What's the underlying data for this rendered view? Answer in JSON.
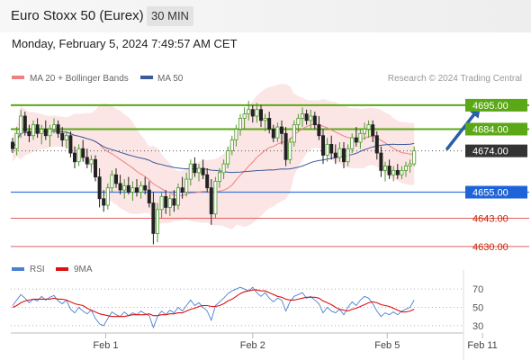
{
  "header": {
    "title": "Euro Stoxx 50 (Eurex)",
    "interval": "30 MIN",
    "datetime": "Monday, February 5, 2024 7:49:57 AM CET"
  },
  "legend": {
    "items": [
      {
        "label": "MA 20 + Bollinger Bands",
        "color": "#f08080"
      },
      {
        "label": "MA 50",
        "color": "#3a5a99"
      }
    ],
    "credit": "Research © 2024 Trading Central"
  },
  "chart_data": [
    {
      "type": "candlestick",
      "ylim": [
        4625,
        4702
      ],
      "x_tick_labels": [
        "Feb 1",
        "Feb 2",
        "Feb 5",
        "Feb 11"
      ],
      "x_tick_positions": [
        22.5,
        58,
        90.5,
        113.5
      ],
      "levels": [
        {
          "value": 4695.0,
          "label": "4695.00",
          "kind": "resistance-strong"
        },
        {
          "value": 4684.0,
          "label": "4684.00",
          "kind": "resistance-strong"
        },
        {
          "value": 4674.0,
          "label": "4674.00",
          "kind": "last"
        },
        {
          "value": 4655.0,
          "label": "4655.00",
          "kind": "pivot"
        },
        {
          "value": 4643.0,
          "label": "4643.00",
          "kind": "support"
        },
        {
          "value": 4630.0,
          "label": "4630.00",
          "kind": "support"
        }
      ],
      "forecast_arrow": {
        "from": [
          105,
          4675
        ],
        "to": [
          113,
          4694
        ]
      },
      "last_price": 4674.0,
      "candles": [
        [
          4678,
          4680,
          4673,
          4675
        ],
        [
          4675,
          4685,
          4672,
          4682
        ],
        [
          4682,
          4693,
          4680,
          4690
        ],
        [
          4690,
          4692,
          4681,
          4683
        ],
        [
          4683,
          4686,
          4678,
          4681
        ],
        [
          4681,
          4688,
          4679,
          4686
        ],
        [
          4686,
          4689,
          4680,
          4682
        ],
        [
          4682,
          4686,
          4677,
          4684
        ],
        [
          4684,
          4688,
          4679,
          4681
        ],
        [
          4681,
          4686,
          4676,
          4684
        ],
        [
          4684,
          4689,
          4682,
          4686
        ],
        [
          4686,
          4688,
          4680,
          4682
        ],
        [
          4682,
          4685,
          4676,
          4679
        ],
        [
          4679,
          4683,
          4675,
          4681
        ],
        [
          4681,
          4683,
          4671,
          4673
        ],
        [
          4673,
          4676,
          4666,
          4669
        ],
        [
          4669,
          4677,
          4667,
          4675
        ],
        [
          4675,
          4679,
          4669,
          4671
        ],
        [
          4671,
          4675,
          4666,
          4668
        ],
        [
          4668,
          4672,
          4664,
          4670
        ],
        [
          4670,
          4672,
          4660,
          4662
        ],
        [
          4662,
          4666,
          4648,
          4652
        ],
        [
          4652,
          4656,
          4646,
          4649
        ],
        [
          4649,
          4659,
          4647,
          4657
        ],
        [
          4657,
          4665,
          4655,
          4663
        ],
        [
          4663,
          4666,
          4657,
          4659
        ],
        [
          4659,
          4663,
          4654,
          4656
        ],
        [
          4656,
          4661,
          4652,
          4658
        ],
        [
          4658,
          4662,
          4654,
          4655
        ],
        [
          4655,
          4660,
          4651,
          4657
        ],
        [
          4657,
          4661,
          4653,
          4655
        ],
        [
          4655,
          4660,
          4652,
          4658
        ],
        [
          4658,
          4662,
          4654,
          4656
        ],
        [
          4656,
          4660,
          4648,
          4650
        ],
        [
          4650,
          4655,
          4631,
          4636
        ],
        [
          4636,
          4650,
          4632,
          4647
        ],
        [
          4647,
          4655,
          4643,
          4653
        ],
        [
          4653,
          4656,
          4645,
          4648
        ],
        [
          4648,
          4654,
          4644,
          4652
        ],
        [
          4652,
          4656,
          4646,
          4649
        ],
        [
          4649,
          4659,
          4647,
          4657
        ],
        [
          4657,
          4662,
          4652,
          4655
        ],
        [
          4655,
          4664,
          4653,
          4661
        ],
        [
          4661,
          4670,
          4658,
          4668
        ],
        [
          4668,
          4671,
          4662,
          4664
        ],
        [
          4664,
          4668,
          4660,
          4666
        ],
        [
          4666,
          4670,
          4661,
          4663
        ],
        [
          4663,
          4666,
          4655,
          4657
        ],
        [
          4657,
          4661,
          4640,
          4645
        ],
        [
          4645,
          4662,
          4643,
          4660
        ],
        [
          4660,
          4666,
          4657,
          4664
        ],
        [
          4664,
          4670,
          4661,
          4668
        ],
        [
          4668,
          4676,
          4666,
          4674
        ],
        [
          4674,
          4681,
          4672,
          4679
        ],
        [
          4679,
          4686,
          4676,
          4684
        ],
        [
          4684,
          4691,
          4681,
          4689
        ],
        [
          4689,
          4694,
          4684,
          4691
        ],
        [
          4691,
          4697,
          4688,
          4693
        ],
        [
          4693,
          4695,
          4687,
          4690
        ],
        [
          4690,
          4696,
          4687,
          4693
        ],
        [
          4693,
          4695,
          4685,
          4688
        ],
        [
          4688,
          4691,
          4683,
          4689
        ],
        [
          4689,
          4692,
          4682,
          4684
        ],
        [
          4684,
          4686,
          4678,
          4680
        ],
        [
          4680,
          4687,
          4678,
          4685
        ],
        [
          4685,
          4688,
          4677,
          4682
        ],
        [
          4682,
          4685,
          4667,
          4670
        ],
        [
          4670,
          4680,
          4668,
          4678
        ],
        [
          4678,
          4688,
          4676,
          4686
        ],
        [
          4686,
          4691,
          4683,
          4689
        ],
        [
          4689,
          4694,
          4685,
          4691
        ],
        [
          4691,
          4693,
          4686,
          4688
        ],
        [
          4688,
          4693,
          4684,
          4690
        ],
        [
          4690,
          4692,
          4684,
          4686
        ],
        [
          4686,
          4690,
          4679,
          4681
        ],
        [
          4681,
          4684,
          4668,
          4672
        ],
        [
          4672,
          4680,
          4669,
          4677
        ],
        [
          4677,
          4681,
          4670,
          4673
        ],
        [
          4673,
          4677,
          4668,
          4671
        ],
        [
          4671,
          4678,
          4669,
          4675
        ],
        [
          4675,
          4678,
          4666,
          4669
        ],
        [
          4669,
          4677,
          4667,
          4675
        ],
        [
          4675,
          4682,
          4673,
          4680
        ],
        [
          4680,
          4685,
          4676,
          4678
        ],
        [
          4678,
          4684,
          4675,
          4682
        ],
        [
          4682,
          4687,
          4679,
          4684
        ],
        [
          4684,
          4688,
          4680,
          4686
        ],
        [
          4686,
          4688,
          4678,
          4681
        ],
        [
          4681,
          4683,
          4670,
          4673
        ],
        [
          4673,
          4676,
          4662,
          4665
        ],
        [
          4665,
          4669,
          4660,
          4667
        ],
        [
          4667,
          4670,
          4661,
          4663
        ],
        [
          4663,
          4667,
          4660,
          4665
        ],
        [
          4665,
          4668,
          4661,
          4663
        ],
        [
          4663,
          4667,
          4661,
          4665
        ],
        [
          4665,
          4669,
          4662,
          4667
        ],
        [
          4667,
          4670,
          4664,
          4668
        ],
        [
          4668,
          4676,
          4667,
          4674
        ]
      ]
    },
    {
      "type": "line",
      "ylim": [
        25,
        78
      ],
      "y_tick_labels": [
        "70",
        "50",
        "30"
      ],
      "y_ticks": [
        70,
        50,
        30
      ],
      "series": [
        {
          "name": "RSI",
          "color": "#4a7fd4",
          "values": [
            52,
            58,
            64,
            60,
            55,
            59,
            57,
            62,
            58,
            61,
            63,
            57,
            54,
            58,
            48,
            44,
            50,
            46,
            43,
            47,
            38,
            32,
            30,
            38,
            45,
            42,
            40,
            45,
            41,
            44,
            42,
            46,
            43,
            41,
            28,
            40,
            46,
            42,
            47,
            44,
            50,
            46,
            52,
            58,
            52,
            55,
            50,
            46,
            36,
            52,
            56,
            60,
            65,
            68,
            70,
            72,
            70,
            68,
            72,
            66,
            62,
            66,
            60,
            56,
            60,
            58,
            46,
            56,
            62,
            64,
            66,
            60,
            62,
            58,
            54,
            44,
            50,
            46,
            44,
            48,
            42,
            50,
            56,
            52,
            58,
            62,
            60,
            54,
            46,
            40,
            44,
            42,
            45,
            42,
            46,
            48,
            50,
            58
          ]
        },
        {
          "name": "9MA",
          "color": "#dd1111",
          "values": [
            50,
            52,
            55,
            57,
            58,
            59,
            59,
            59,
            59,
            59,
            60,
            59,
            59,
            58,
            56,
            54,
            53,
            52,
            49,
            47,
            45,
            43,
            42,
            41,
            40,
            40,
            40,
            40,
            41,
            42,
            42,
            42,
            42,
            43,
            41,
            41,
            42,
            42,
            43,
            43,
            44,
            44,
            46,
            48,
            49,
            51,
            52,
            52,
            51,
            51,
            52,
            54,
            57,
            59,
            62,
            65,
            67,
            68,
            69,
            69,
            68,
            68,
            66,
            64,
            62,
            61,
            59,
            58,
            58,
            59,
            60,
            61,
            61,
            61,
            60,
            57,
            55,
            53,
            50,
            48,
            47,
            46,
            48,
            49,
            51,
            53,
            55,
            56,
            55,
            53,
            52,
            51,
            49,
            47,
            45,
            45,
            46,
            48
          ]
        }
      ],
      "reference_lines": [
        70,
        50,
        30
      ]
    }
  ]
}
